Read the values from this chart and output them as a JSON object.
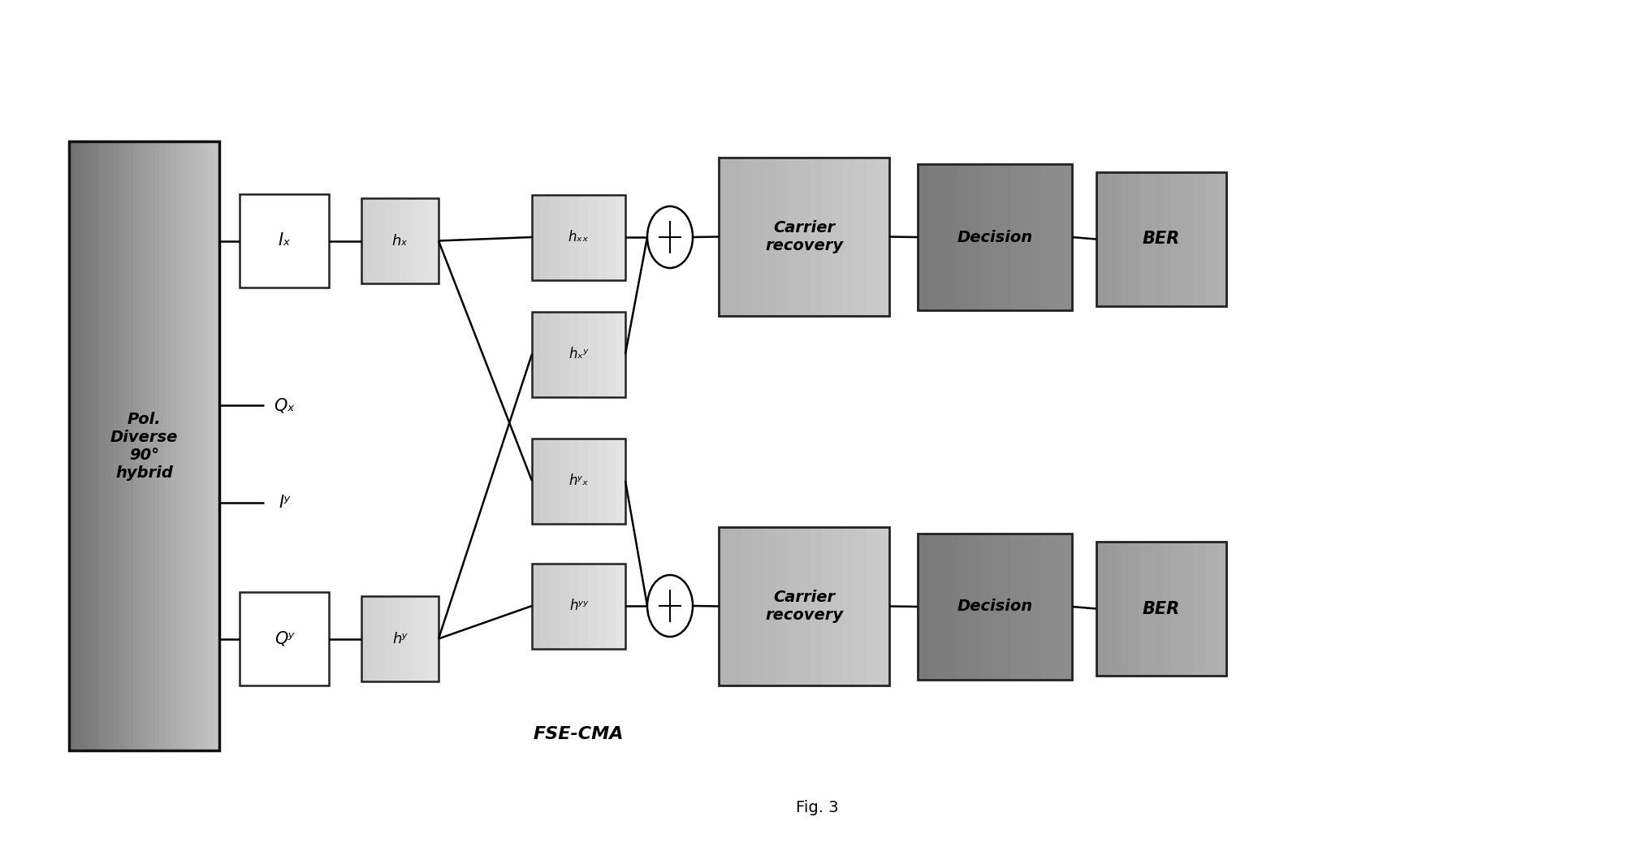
{
  "fig_width": 20.12,
  "fig_height": 10.54,
  "bg_color": "#ffffff",
  "title": "Fig. 3",
  "fse_cma_label": "FSE-CMA",
  "pol_diverse_text": "Pol.\nDiverse\n90°\nhybrid",
  "ix_label": "Iₓ",
  "qx_label": "Qₓ",
  "iy_label": "Iʸ",
  "qy_label": "Qʸ",
  "hx_label": "hₓ",
  "hy_label": "hʸ",
  "hxx_label": "hₓₓ",
  "hxy_label": "hₓʸ",
  "hyx_label": "hʸₓ",
  "hyy_label": "hʸʸ",
  "carrier_recovery_label": "Carrier\nrecovery",
  "decision_label": "Decision",
  "ber_label": "BER",
  "box_outline": "#222222"
}
